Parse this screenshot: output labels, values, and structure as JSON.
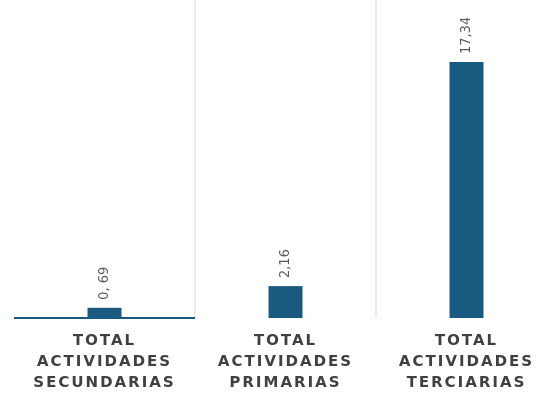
{
  "chart_data": {
    "type": "bar",
    "categories": [
      "TOTAL ACTIVIDADES SECUNDARIAS",
      "TOTAL ACTIVIDADES PRIMARIAS",
      "TOTAL ACTIVIDADES TERCIARIAS"
    ],
    "values": [
      0.69,
      2.16,
      17.34
    ],
    "value_labels": [
      "0, 69",
      "2,16",
      "17,34"
    ],
    "color": "#1a5a80"
  }
}
